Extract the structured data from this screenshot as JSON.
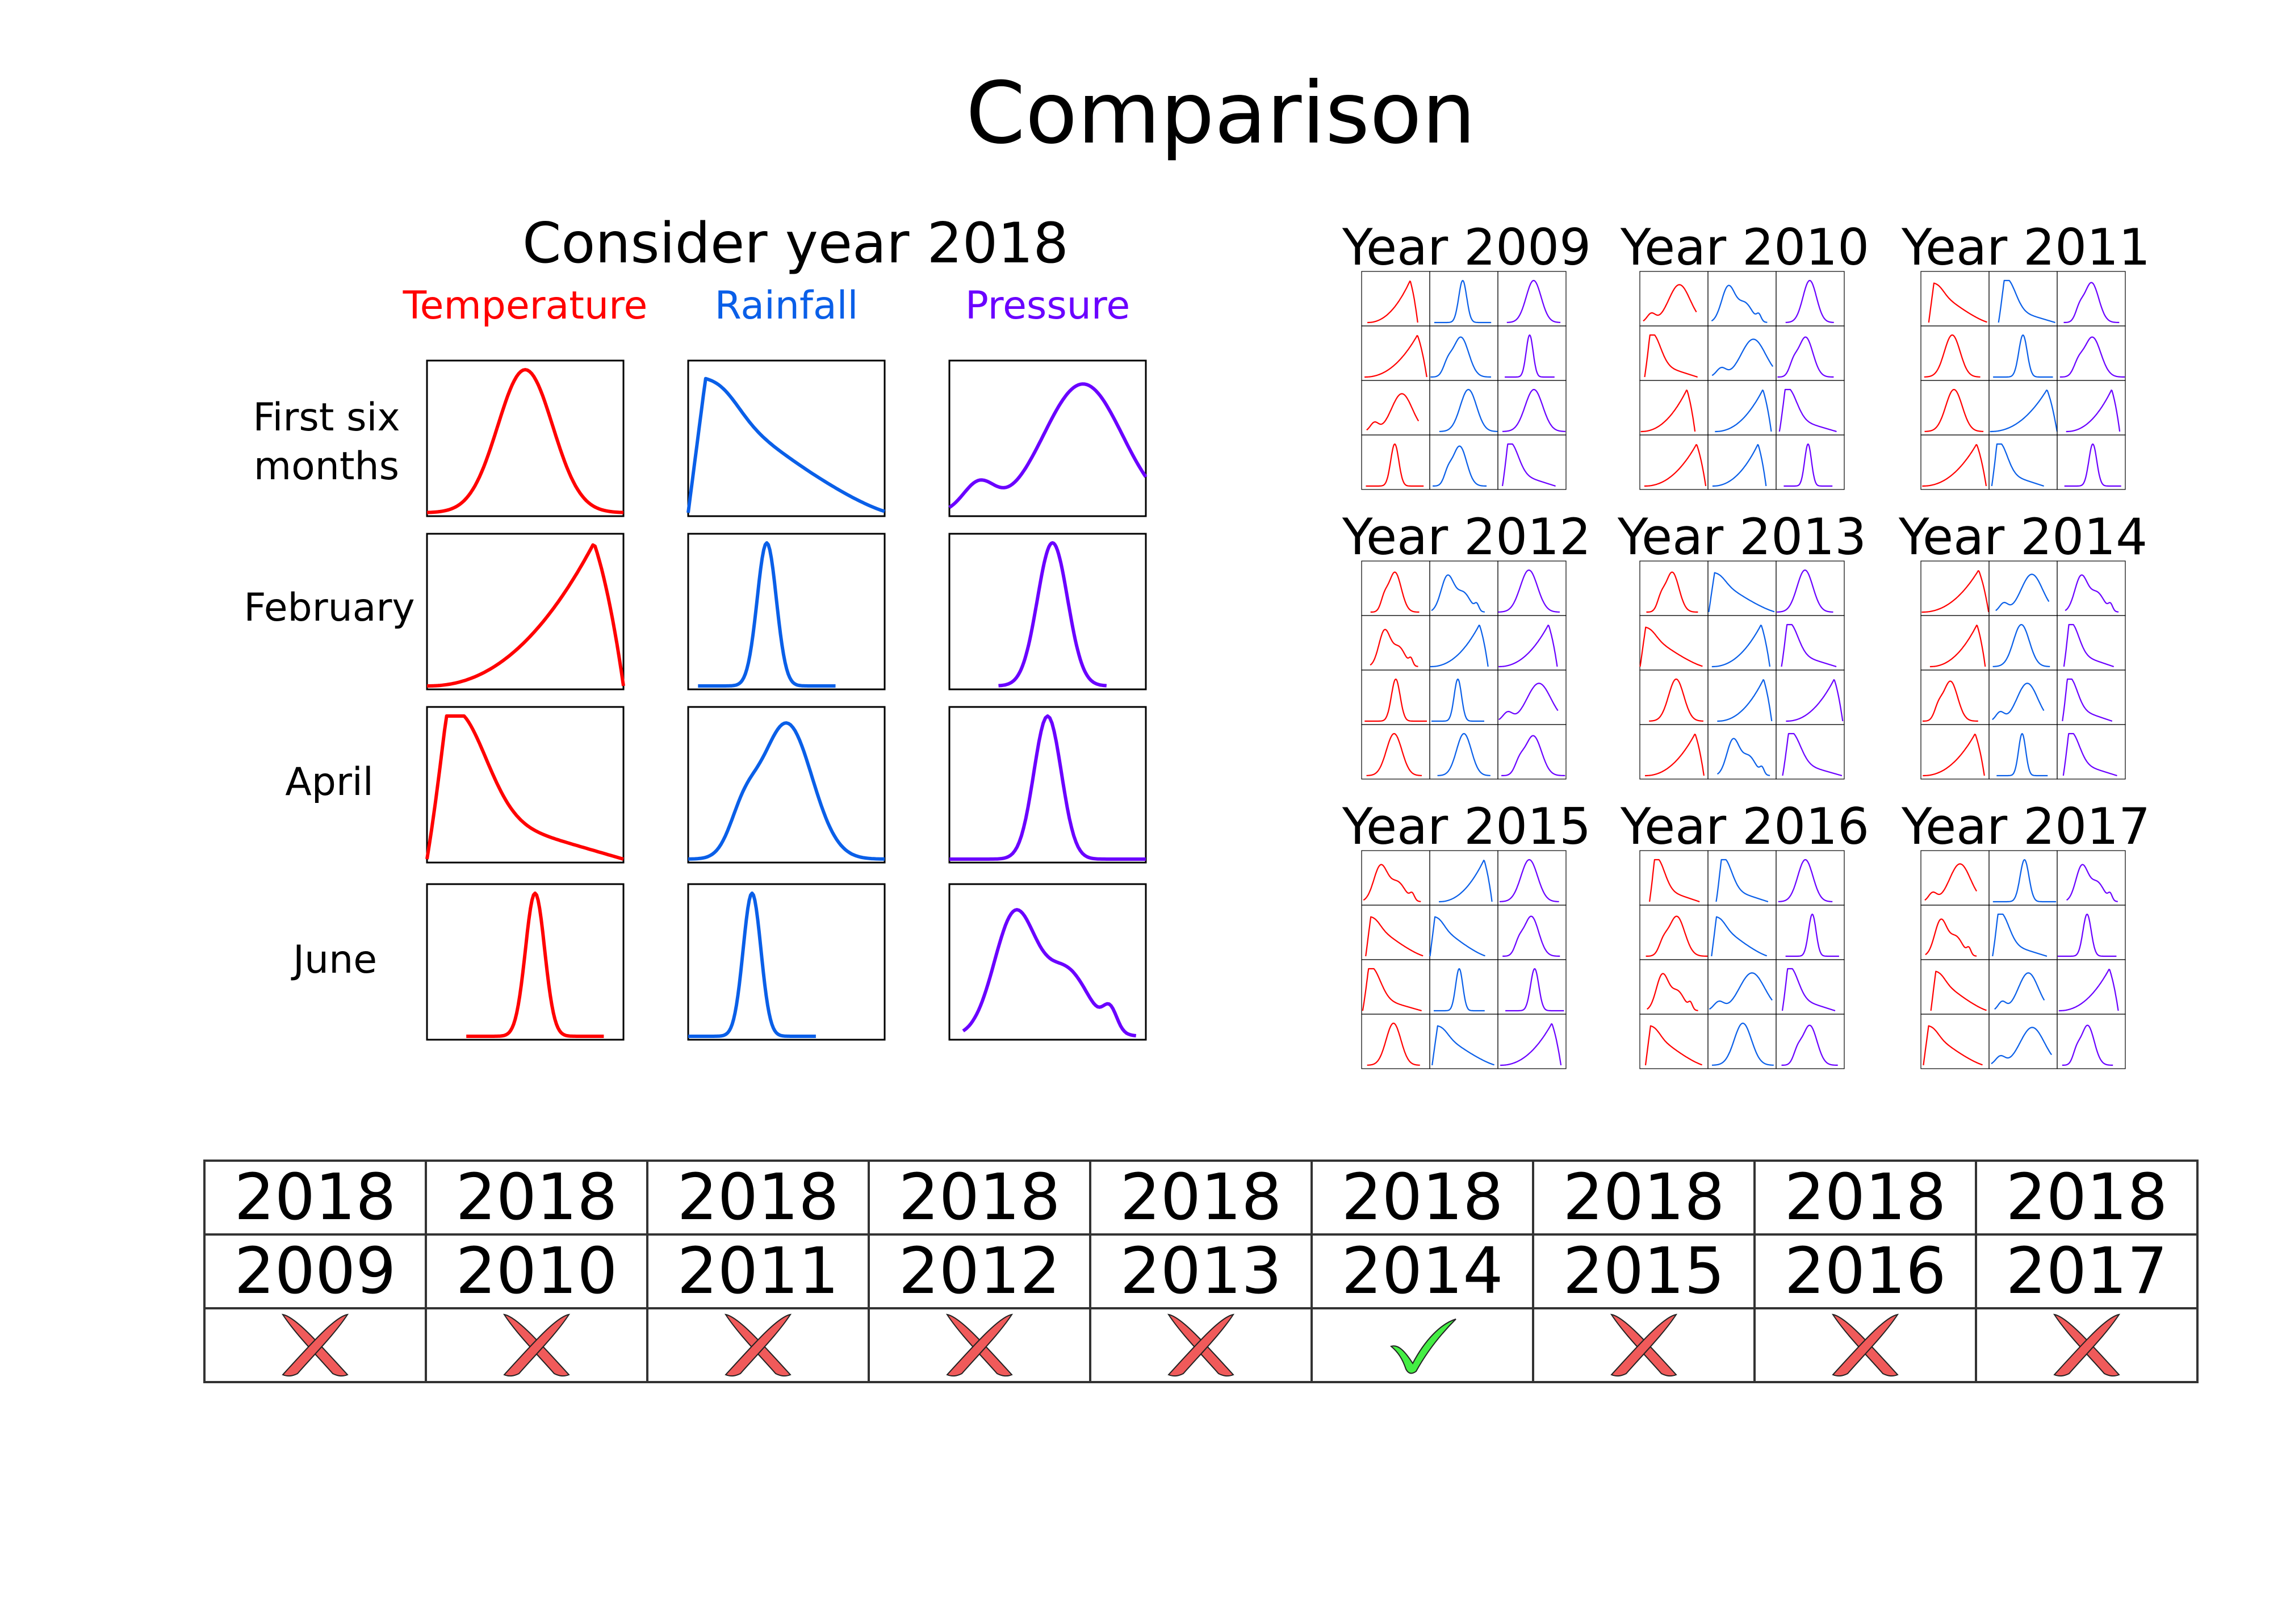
{
  "title": "Comparison",
  "left_panel": {
    "title": "Consider year 2018",
    "columns": [
      {
        "label": "Temperature",
        "color": "#ff0000"
      },
      {
        "label": "Rainfall",
        "color": "#0a5fe8"
      },
      {
        "label": "Pressure",
        "color": "#6a00ff"
      }
    ],
    "rows": [
      {
        "label": "First six\nmonths"
      },
      {
        "label": "February"
      },
      {
        "label": "April"
      },
      {
        "label": "June"
      }
    ]
  },
  "year_panels": [
    {
      "title": "Year 2009"
    },
    {
      "title": "Year 2010"
    },
    {
      "title": "Year 2011"
    },
    {
      "title": "Year 2012"
    },
    {
      "title": "Year 2013"
    },
    {
      "title": "Year 2014"
    },
    {
      "title": "Year 2015"
    },
    {
      "title": "Year 2016"
    },
    {
      "title": "Year 2017"
    }
  ],
  "comparison_table": {
    "reference_year": [
      "2018",
      "2018",
      "2018",
      "2018",
      "2018",
      "2018",
      "2018",
      "2018",
      "2018"
    ],
    "compared_year": [
      "2009",
      "2010",
      "2011",
      "2012",
      "2013",
      "2014",
      "2015",
      "2016",
      "2017"
    ],
    "result": [
      "cross",
      "cross",
      "cross",
      "cross",
      "cross",
      "check",
      "cross",
      "cross",
      "cross"
    ],
    "colors": {
      "cross": "#f05a5a",
      "check": "#44ee44"
    }
  }
}
